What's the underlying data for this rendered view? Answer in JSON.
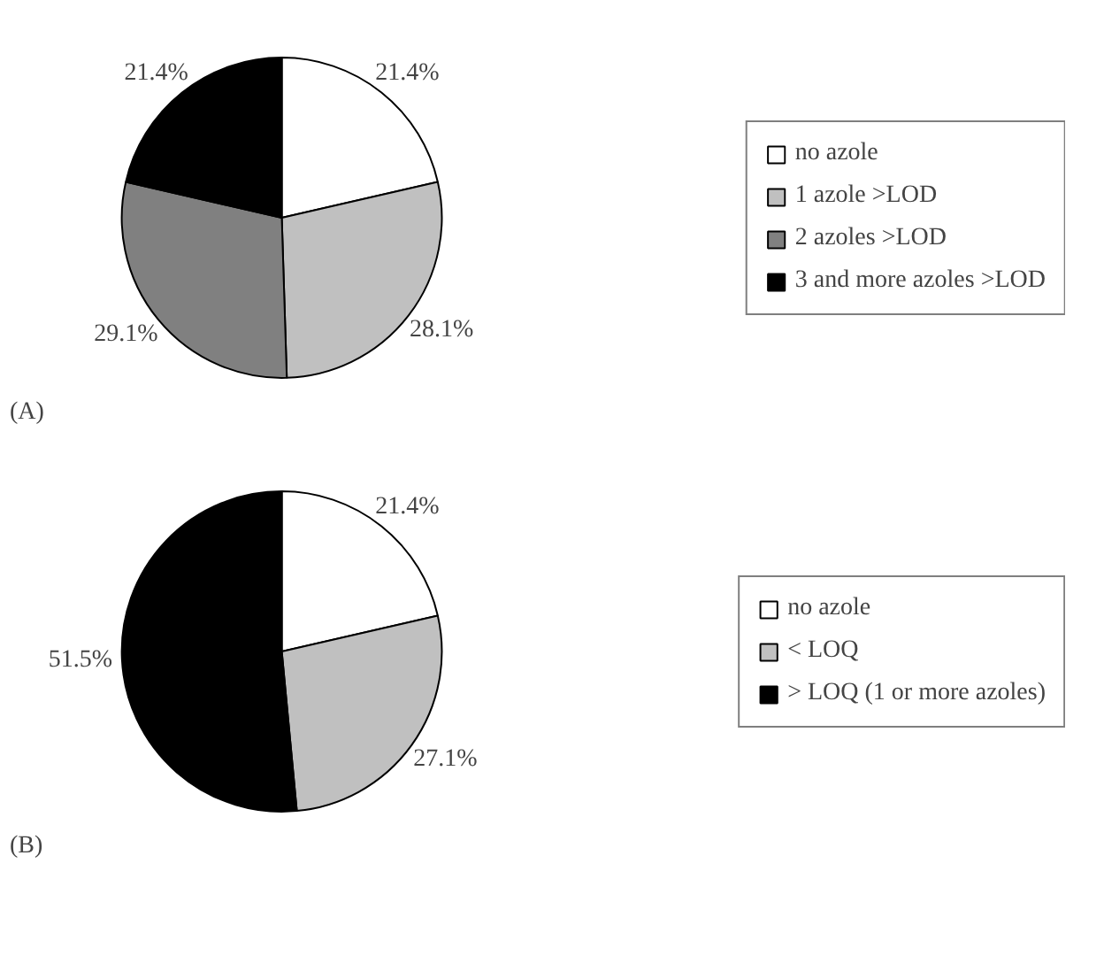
{
  "chart_data": [
    {
      "type": "pie",
      "categories": [
        "no azole",
        "1 azole >LOD",
        "2 azoles >LOD",
        "3 and more azoles >LOD"
      ],
      "values": [
        21.4,
        28.1,
        29.1,
        21.4
      ],
      "colors": [
        "#ffffff",
        "#c0c0c0",
        "#808080",
        "#000000"
      ],
      "value_labels": [
        "21.4%",
        "28.1%",
        "29.1%",
        "21.4%"
      ],
      "legend": "right",
      "annotations": [
        "(A)"
      ]
    },
    {
      "type": "pie",
      "categories": [
        "no azole",
        "< LOQ",
        "> LOQ (1 or more azoles)"
      ],
      "values": [
        21.4,
        27.1,
        51.5
      ],
      "colors": [
        "#ffffff",
        "#c0c0c0",
        "#000000"
      ],
      "value_labels": [
        "21.4%",
        "27.1%",
        "51.5%"
      ],
      "legend": "right",
      "annotations": [
        "(B)"
      ]
    }
  ]
}
